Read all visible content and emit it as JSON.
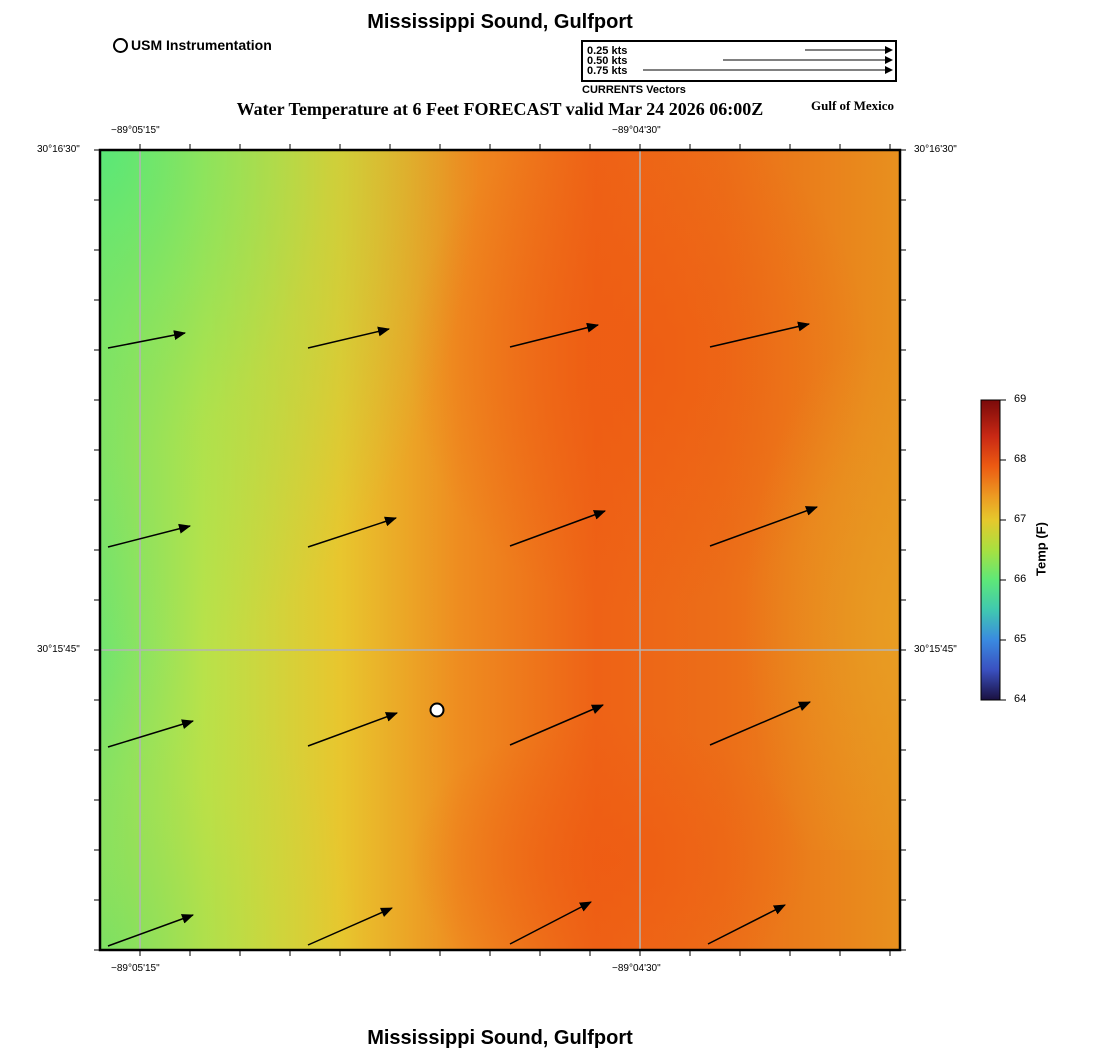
{
  "header": {
    "title": "Mississippi Sound, Gulfport",
    "footer_title": "Mississippi Sound, Gulfport"
  },
  "legend": {
    "usm_label": "USM Instrumentation",
    "vector_scale": [
      {
        "label": "0.25 kts",
        "speed_kts": 0.25
      },
      {
        "label": "0.50 kts",
        "speed_kts": 0.5
      },
      {
        "label": "0.75 kts",
        "speed_kts": 0.75
      }
    ],
    "vector_caption": "CURRENTS Vectors"
  },
  "map": {
    "title": "Water Temperature at 6 Feet FORECAST valid Mar 24 2026 06:00Z",
    "region_label": "Gulf of Mexico",
    "lon_labels": [
      "−89°05'15\"",
      "−89°04'30\""
    ],
    "lat_labels": [
      "30°16'30\"",
      "30°15'45\""
    ],
    "station": {
      "name": "USM Instrumentation"
    }
  },
  "colorbar": {
    "title": "Temp (F)",
    "ticks": [
      "69",
      "68",
      "67",
      "66",
      "65",
      "64"
    ],
    "min": 64,
    "max": 69
  },
  "colors": {
    "cool": "#5ee878",
    "mid": "#e6c62e",
    "warm": "#ef5e14",
    "orange": "#e8901e",
    "grid": "#b4b4b4"
  }
}
